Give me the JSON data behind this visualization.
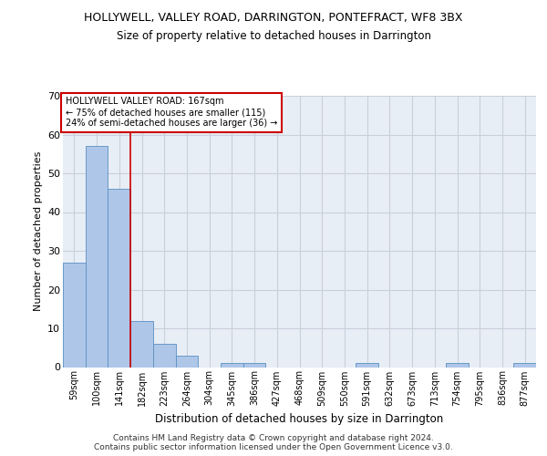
{
  "title": "HOLLYWELL, VALLEY ROAD, DARRINGTON, PONTEFRACT, WF8 3BX",
  "subtitle": "Size of property relative to detached houses in Darrington",
  "xlabel": "Distribution of detached houses by size in Darrington",
  "ylabel": "Number of detached properties",
  "bar_labels": [
    "59sqm",
    "100sqm",
    "141sqm",
    "182sqm",
    "223sqm",
    "264sqm",
    "304sqm",
    "345sqm",
    "386sqm",
    "427sqm",
    "468sqm",
    "509sqm",
    "550sqm",
    "591sqm",
    "632sqm",
    "673sqm",
    "713sqm",
    "754sqm",
    "795sqm",
    "836sqm",
    "877sqm"
  ],
  "bar_values": [
    27,
    57,
    46,
    12,
    6,
    3,
    0,
    1,
    1,
    0,
    0,
    0,
    0,
    1,
    0,
    0,
    0,
    1,
    0,
    0,
    1
  ],
  "bar_color": "#aec6e8",
  "bar_edge_color": "#5a8fc2",
  "annotation_text": "HOLLYWELL VALLEY ROAD: 167sqm\n← 75% of detached houses are smaller (115)\n24% of semi-detached houses are larger (36) →",
  "annotation_box_color": "#ffffff",
  "annotation_box_edge_color": "#cc0000",
  "vline_x": 2.5,
  "vline_color": "#cc0000",
  "ylim": [
    0,
    70
  ],
  "yticks": [
    0,
    10,
    20,
    30,
    40,
    50,
    60,
    70
  ],
  "grid_color": "#c8d0dc",
  "background_color": "#e8eef6",
  "footer": "Contains HM Land Registry data © Crown copyright and database right 2024.\nContains public sector information licensed under the Open Government Licence v3.0."
}
